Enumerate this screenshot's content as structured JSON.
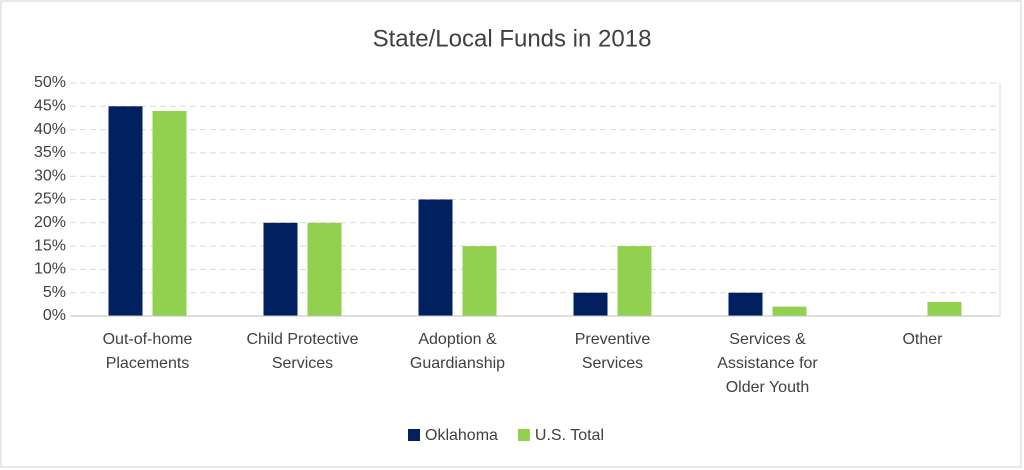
{
  "chart_data": {
    "type": "bar",
    "title": "State/Local Funds in 2018",
    "categories": [
      "Out-of-home Placements",
      "Child Protective Services",
      "Adoption & Guardianship",
      "Preventive Services",
      "Services & Assistance for Older Youth",
      "Other"
    ],
    "series": [
      {
        "name": "Oklahoma",
        "color": "#002060",
        "values": [
          45,
          20,
          25,
          5,
          5,
          0
        ]
      },
      {
        "name": "U.S. Total",
        "color": "#92d050",
        "values": [
          44,
          20,
          15,
          15,
          2,
          3
        ]
      }
    ],
    "ylim": [
      0,
      50
    ],
    "yticks": [
      {
        "value": 0,
        "label": "0%"
      },
      {
        "value": 5,
        "label": "5%"
      },
      {
        "value": 10,
        "label": "10%"
      },
      {
        "value": 15,
        "label": "15%"
      },
      {
        "value": 20,
        "label": "20%"
      },
      {
        "value": 25,
        "label": "25%"
      },
      {
        "value": 30,
        "label": "30%"
      },
      {
        "value": 35,
        "label": "35%"
      },
      {
        "value": 40,
        "label": "40%"
      },
      {
        "value": 45,
        "label": "45%"
      },
      {
        "value": 50,
        "label": "50%"
      }
    ],
    "grid": true
  }
}
